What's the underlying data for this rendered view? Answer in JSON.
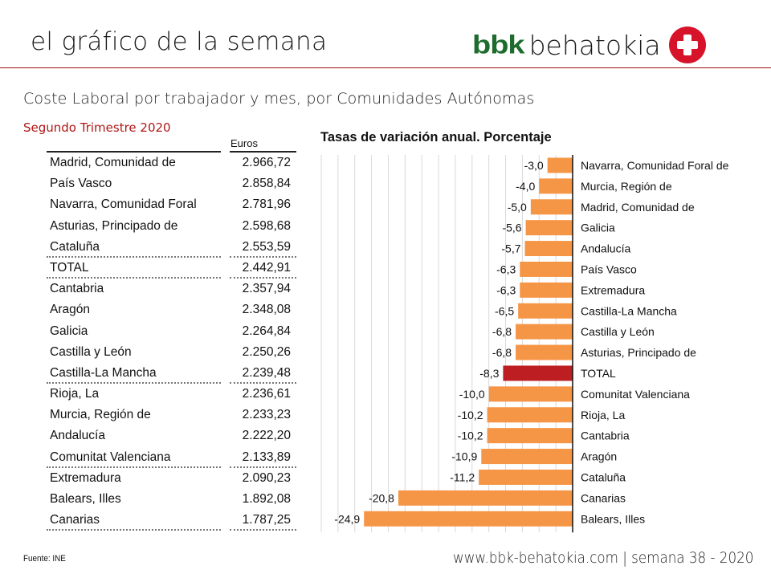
{
  "header": {
    "title": "el gráfico de la semana",
    "logo_bbk": "bbk",
    "logo_behatokia": "behatokia",
    "logo_icon": "plus-cross-icon"
  },
  "subtitle": "Coste Laboral por trabajador y mes, por Comunidades Autónomas",
  "period": "Segundo Trimestre 2020",
  "table": {
    "column_header": "Euros",
    "rows": [
      {
        "name": "Madrid, Comunidad de",
        "value": "2.966,72",
        "sep": false
      },
      {
        "name": "País Vasco",
        "value": "2.858,84",
        "sep": false
      },
      {
        "name": "Navarra, Comunidad Foral",
        "value": "2.781,96",
        "sep": false
      },
      {
        "name": "Asturias, Principado de",
        "value": "2.598,68",
        "sep": false
      },
      {
        "name": "Cataluña",
        "value": "2.553,59",
        "sep": true
      },
      {
        "name": "TOTAL",
        "value": "2.442,91",
        "sep": true
      },
      {
        "name": "Cantabria",
        "value": "2.357,94",
        "sep": false
      },
      {
        "name": "Aragón",
        "value": "2.348,08",
        "sep": false
      },
      {
        "name": "Galicia",
        "value": "2.264,84",
        "sep": false
      },
      {
        "name": "Castilla y León",
        "value": "2.250,26",
        "sep": false
      },
      {
        "name": "Castilla-La Mancha",
        "value": "2.239,48",
        "sep": true
      },
      {
        "name": "Rioja, La",
        "value": "2.236,61",
        "sep": false
      },
      {
        "name": "Murcia, Región de",
        "value": "2.233,23",
        "sep": false
      },
      {
        "name": "Andalucía",
        "value": "2.222,20",
        "sep": false
      },
      {
        "name": "Comunitat Valenciana",
        "value": "2.133,89",
        "sep": true
      },
      {
        "name": "Extremadura",
        "value": "2.090,23",
        "sep": false
      },
      {
        "name": "Balears, Illes",
        "value": "1.892,08",
        "sep": false
      },
      {
        "name": "Canarias",
        "value": "1.787,25",
        "sep": true
      }
    ]
  },
  "chart_data": {
    "type": "bar",
    "orientation": "horizontal",
    "title": "Tasas de variación anual. Porcentaje",
    "xlabel": "",
    "ylabel": "",
    "xlim": [
      -30,
      0
    ],
    "grid": true,
    "grid_step": 2,
    "categories": [
      "Navarra, Comunidad Foral de",
      "Murcia, Región de",
      "Madrid, Comunidad de",
      "Galicia",
      "Andalucía",
      "País Vasco",
      "Extremadura",
      "Castilla-La Mancha",
      "Castilla y León",
      "Asturias, Principado de",
      "TOTAL",
      "Comunitat Valenciana",
      "Rioja, La",
      "Cantabria",
      "Aragón",
      "Cataluña",
      "Canarias",
      "Balears, Illes"
    ],
    "values": [
      -3.0,
      -4.0,
      -5.0,
      -5.6,
      -5.7,
      -6.3,
      -6.3,
      -6.5,
      -6.8,
      -6.8,
      -8.3,
      -10.0,
      -10.2,
      -10.2,
      -10.9,
      -11.2,
      -20.8,
      -24.9
    ],
    "value_labels": [
      "-3,0",
      "-4,0",
      "-5,0",
      "-5,6",
      "-5,7",
      "-6,3",
      "-6,3",
      "-6,5",
      "-6,8",
      "-6,8",
      "-8,3",
      "-10,0",
      "-10,2",
      "-10,2",
      "-10,9",
      "-11,2",
      "-20,8",
      "-24,9"
    ],
    "colors": {
      "default": "#f59646",
      "highlight": "#bc1e22",
      "grid": "#d9d9d9",
      "axis": "#111111"
    },
    "highlight_category": "TOTAL"
  },
  "footer": {
    "source": "Fuente:  INE",
    "website": "www.bbk-behatokia.com | semana 38 - 2020"
  }
}
